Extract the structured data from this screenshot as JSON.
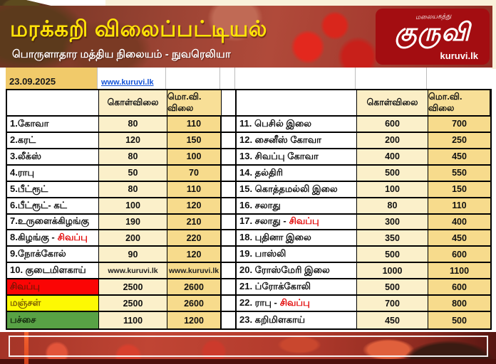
{
  "banner": {
    "title": "மரக்கறி விலைப்பட்டியல்",
    "subtitle": "பொருளாதார மத்திய நிலையம் - நுவரெலியா",
    "logo": {
      "tagline": "மலையகத்து",
      "main": "குருவி",
      "site": "kuruvi.lk"
    }
  },
  "date_row": {
    "date": "23.09.2025",
    "link": "www.kuruvi.lk"
  },
  "table": {
    "headers": {
      "buy": "கொள்விலை",
      "retail": "மொ.வி. விலை"
    },
    "left_rows": [
      {
        "name": "1.கோவா",
        "buy": "80",
        "retail": "110"
      },
      {
        "name": "2.கரட்",
        "buy": "120",
        "retail": "150"
      },
      {
        "name": "3.லீக்ஸ்",
        "buy": "80",
        "retail": "100"
      },
      {
        "name": "4.ராபு",
        "buy": "50",
        "retail": "70"
      },
      {
        "name": "5.பீட்ரூட்",
        "buy": "80",
        "retail": "110"
      },
      {
        "name": "6.பீட்ரூட்- கட்",
        "buy": "100",
        "retail": "120"
      },
      {
        "name": "7.உருளைக்கிழங்கு",
        "buy": "190",
        "retail": "210"
      },
      {
        "name": "8.கிழங்கு - ",
        "accent": "சிவப்பு",
        "buy": "200",
        "retail": "220"
      },
      {
        "name": "9.நோக்கோல்",
        "buy": "90",
        "retail": "120"
      },
      {
        "name": "10. குடைமிளகாய்",
        "buy": "www.kuruvi.lk",
        "retail": "www.kuruvi.lk",
        "small_values": true
      },
      {
        "name": "சிவப்பு",
        "row_bg": "#fb0505",
        "name_color": "#7c1404",
        "buy": "2500",
        "retail": "2600"
      },
      {
        "name": "மஞ்சள்",
        "row_bg": "#fdf903",
        "name_color": "#7c5e04",
        "buy": "2500",
        "retail": "2600"
      },
      {
        "name": "பச்சை",
        "row_bg": "#58a245",
        "name_color": "#14290e",
        "buy": "1100",
        "retail": "1200"
      }
    ],
    "right_rows": [
      {
        "name": "11. பெசில் இலை",
        "buy": "600",
        "retail": "700"
      },
      {
        "name": "12. சைனீஸ் கோவா",
        "buy": "200",
        "retail": "250"
      },
      {
        "name": "13. சிவப்பு கோவா",
        "buy": "400",
        "retail": "450"
      },
      {
        "name": "14. தல்திரி",
        "buy": "500",
        "retail": "550"
      },
      {
        "name": "15. கொத்தமல்லி இலை",
        "buy": "100",
        "retail": "150"
      },
      {
        "name": "16. சலாது",
        "buy": "80",
        "retail": "110"
      },
      {
        "name": "17. சலாது - ",
        "accent": "சிவப்பு",
        "buy": "300",
        "retail": "400"
      },
      {
        "name": "18. புதினா இலை",
        "buy": "350",
        "retail": "450"
      },
      {
        "name": "19. பாஸ்லி",
        "buy": "500",
        "retail": "600"
      },
      {
        "name": "20. ரோஸ்மேரி இலை",
        "buy": "1000",
        "retail": "1100"
      },
      {
        "name": "21. ப்ரோக்கோலி",
        "buy": "500",
        "retail": "600"
      },
      {
        "name": "22. ராபு - ",
        "accent": "சிவப்பு",
        "buy": "700",
        "retail": "800"
      },
      {
        "name": "23. கறிமிளகாய்",
        "buy": "450",
        "retail": "500"
      }
    ]
  },
  "colors": {
    "banner_red": "#9c4434",
    "title_yellow": "#ffe308",
    "logo_box_red": "#a30d11",
    "date_cell_yellow": "#f1ca6a",
    "buy_column": "#fbf0ca",
    "retail_column": "#f7db8c",
    "red_row": "#fb0505",
    "yellow_row": "#fdf903",
    "green_row": "#58a245",
    "accent_red": "#e10000",
    "link_blue": "#1353d8"
  }
}
